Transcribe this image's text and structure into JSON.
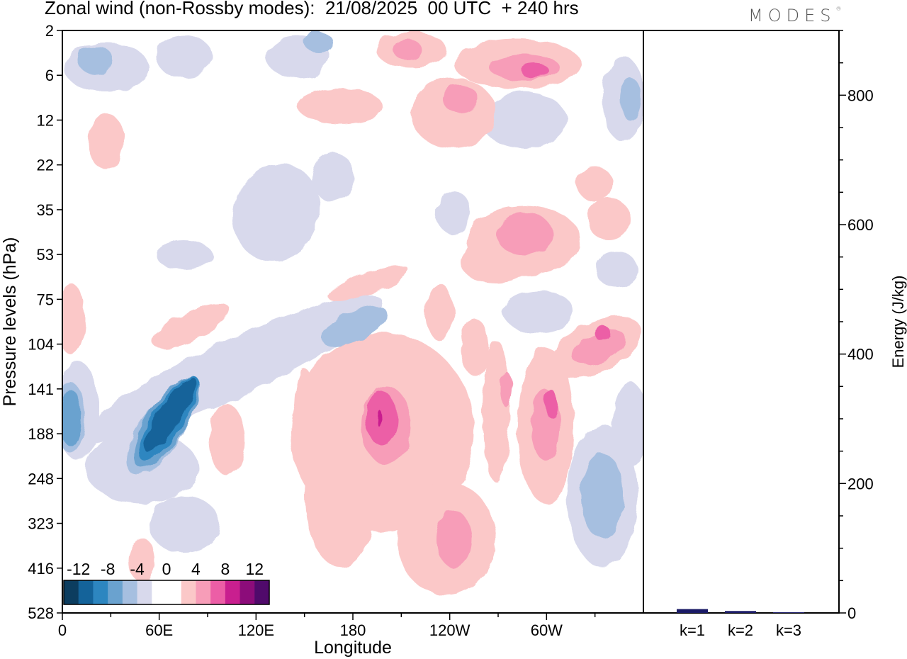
{
  "figure": {
    "title": "Zonal wind (non-Rossby modes):  21/08/2025  00 UTC  + 240 hrs",
    "logo": "MODES",
    "logo_mark": "®"
  },
  "chart_data": [
    {
      "type": "heatmap",
      "title": "Zonal wind (non-Rossby modes):  21/08/2025  00 UTC  + 240 hrs",
      "xlabel": "Longitude",
      "ylabel": "Pressure levels (hPa)",
      "x_ticks": [
        "0",
        "60E",
        "120E",
        "180",
        "120W",
        "60W"
      ],
      "y_ticks": [
        "2",
        "6",
        "12",
        "22",
        "35",
        "53",
        "75",
        "104",
        "141",
        "188",
        "248",
        "323",
        "416",
        "528"
      ],
      "grid": false,
      "colorbar": {
        "labels": [
          "-12",
          "-8",
          "-4",
          "0",
          "4",
          "8",
          "12"
        ],
        "colors": [
          "#0c3d5f",
          "#14639a",
          "#2d86c0",
          "#6aa2cf",
          "#a6bfe0",
          "#d8d9ec",
          "#ffffff",
          "#ffffff",
          "#fbc8c8",
          "#f79db8",
          "#ec5ea6",
          "#c91f8f",
          "#8c0c7a",
          "#500a6b"
        ]
      },
      "features": [
        {
          "lon": 60,
          "level": "188",
          "value": -12,
          "desc": "strong easterly jet tilting upward from 248 to 104 hPa"
        },
        {
          "lon": 5,
          "level": "188",
          "value": -8
        },
        {
          "lon": 190,
          "level": "188",
          "value": 12,
          "desc": "westerly maximum"
        },
        {
          "lon": 230,
          "level": "248",
          "value": 6
        },
        {
          "lon": 300,
          "level": "188",
          "value": 8
        },
        {
          "lon": 330,
          "level": "104",
          "value": 8
        },
        {
          "lon": 295,
          "level": "6",
          "value": 10
        },
        {
          "lon": 335,
          "level": "248",
          "value": -6
        },
        {
          "lon": 150,
          "level": "104",
          "value": -6
        }
      ]
    },
    {
      "type": "bar",
      "categories": [
        "k=1",
        "k=2",
        "k=3"
      ],
      "values": [
        6,
        3,
        1
      ],
      "ylabel": "Energy (J/kg)",
      "ylim": [
        0,
        900
      ],
      "y_ticks": [
        "0",
        "200",
        "400",
        "600",
        "800"
      ],
      "bar_color": "#1a1a66"
    }
  ]
}
